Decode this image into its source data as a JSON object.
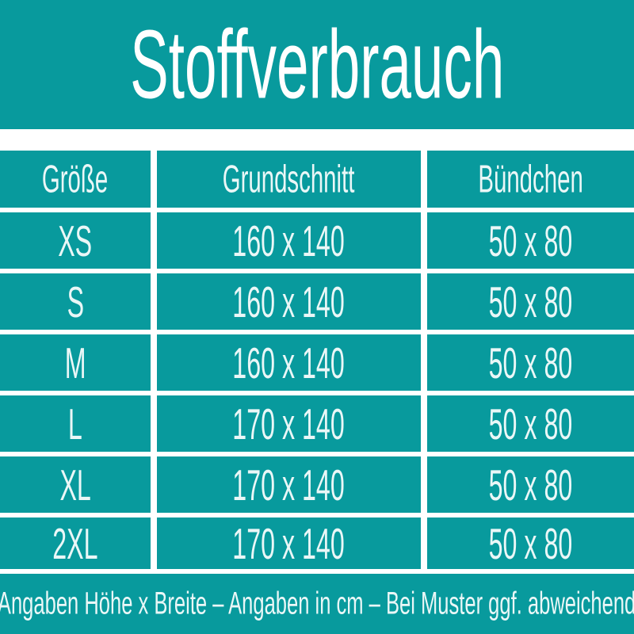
{
  "page": {
    "title": "Stoffverbrauch",
    "footer": "Angaben Höhe x Breite – Angaben in cm – Bei Muster ggf. abweichend"
  },
  "colors": {
    "bg": "#089a9d",
    "text": "#eaf7f7",
    "line": "#ffffff"
  },
  "table": {
    "headers": [
      "Größe",
      "Grundschnitt",
      "Bündchen"
    ],
    "rows": [
      [
        "XS",
        "160 x 140",
        "50 x 80"
      ],
      [
        "S",
        "160 x 140",
        "50 x 80"
      ],
      [
        "M",
        "160 x 140",
        "50 x 80"
      ],
      [
        "L",
        "170 x 140",
        "50 x 80"
      ],
      [
        "XL",
        "170 x 140",
        "50 x 80"
      ],
      [
        "2XL",
        "170 x 140",
        "50 x 80"
      ]
    ]
  },
  "chart_data": {
    "type": "table",
    "title": "Stoffverbrauch",
    "columns": [
      "Größe",
      "Grundschnitt",
      "Bündchen"
    ],
    "rows": [
      {
        "groesse": "XS",
        "grundschnitt": "160 x 140",
        "buendchen": "50 x 80"
      },
      {
        "groesse": "S",
        "grundschnitt": "160 x 140",
        "buendchen": "50 x 80"
      },
      {
        "groesse": "M",
        "grundschnitt": "160 x 140",
        "buendchen": "50 x 80"
      },
      {
        "groesse": "L",
        "grundschnitt": "170 x 140",
        "buendchen": "50 x 80"
      },
      {
        "groesse": "XL",
        "grundschnitt": "170 x 140",
        "buendchen": "50 x 80"
      },
      {
        "groesse": "2XL",
        "grundschnitt": "170 x 140",
        "buendchen": "50 x 80"
      }
    ],
    "units": "cm",
    "note": "Angaben Höhe x Breite – Angaben in cm – Bei Muster ggf. abweichend"
  }
}
